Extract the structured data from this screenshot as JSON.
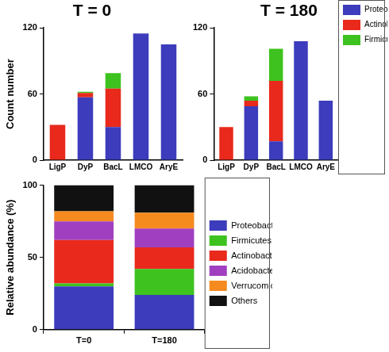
{
  "chart_data": [
    {
      "type": "bar",
      "title": "T = 0",
      "y_label": "Count number",
      "categories": [
        "LigP",
        "DyP",
        "BacL",
        "LMCO",
        "AryE"
      ],
      "series": [
        {
          "name": "Proteobacteria",
          "color": "#3c3cbc",
          "values": [
            0,
            57,
            30,
            115,
            105
          ]
        },
        {
          "name": "Actinobacteria",
          "color": "#e8291c",
          "values": [
            32,
            4,
            35,
            0,
            0
          ]
        },
        {
          "name": "Firmicutes",
          "color": "#3ec21f",
          "values": [
            0,
            1,
            14,
            0,
            0
          ]
        }
      ],
      "ylim": [
        0,
        120
      ],
      "yticks": [
        0,
        60,
        120
      ],
      "stacked": true,
      "grid": false
    },
    {
      "type": "bar",
      "title": "T = 180",
      "categories": [
        "LigP",
        "DyP",
        "BacL",
        "LMCO",
        "AryE"
      ],
      "series": [
        {
          "name": "Proteobacteria",
          "color": "#3c3cbc",
          "values": [
            0,
            49,
            17,
            108,
            54
          ]
        },
        {
          "name": "Actinobacteria",
          "color": "#e8291c",
          "values": [
            30,
            5,
            55,
            0,
            0
          ]
        },
        {
          "name": "Firmicutes",
          "color": "#3ec21f",
          "values": [
            0,
            4,
            29,
            0,
            0
          ]
        }
      ],
      "ylim": [
        0,
        120
      ],
      "yticks": [
        0,
        60,
        120
      ],
      "stacked": true,
      "grid": false,
      "legend": "right"
    },
    {
      "type": "bar",
      "y_label": "Relative abundance (%)",
      "categories": [
        "T=0",
        "T=180"
      ],
      "series": [
        {
          "name": "Proteobacteria",
          "color": "#3c3cbc",
          "values": [
            30,
            24
          ]
        },
        {
          "name": "Firmicutes",
          "color": "#3ec21f",
          "values": [
            2,
            18
          ]
        },
        {
          "name": "Actinobacteria",
          "color": "#e8291c",
          "values": [
            30,
            15
          ]
        },
        {
          "name": "Acidobacteria",
          "color": "#a040c0",
          "values": [
            13,
            13
          ]
        },
        {
          "name": "Verrucomicrobia",
          "color": "#f58a1f",
          "values": [
            7,
            11
          ]
        },
        {
          "name": "Others",
          "color": "#111111",
          "values": [
            18,
            19
          ]
        }
      ],
      "ylim": [
        0,
        100
      ],
      "yticks": [
        0,
        50,
        100
      ],
      "stacked": true,
      "grid": false,
      "legend": "right"
    }
  ]
}
